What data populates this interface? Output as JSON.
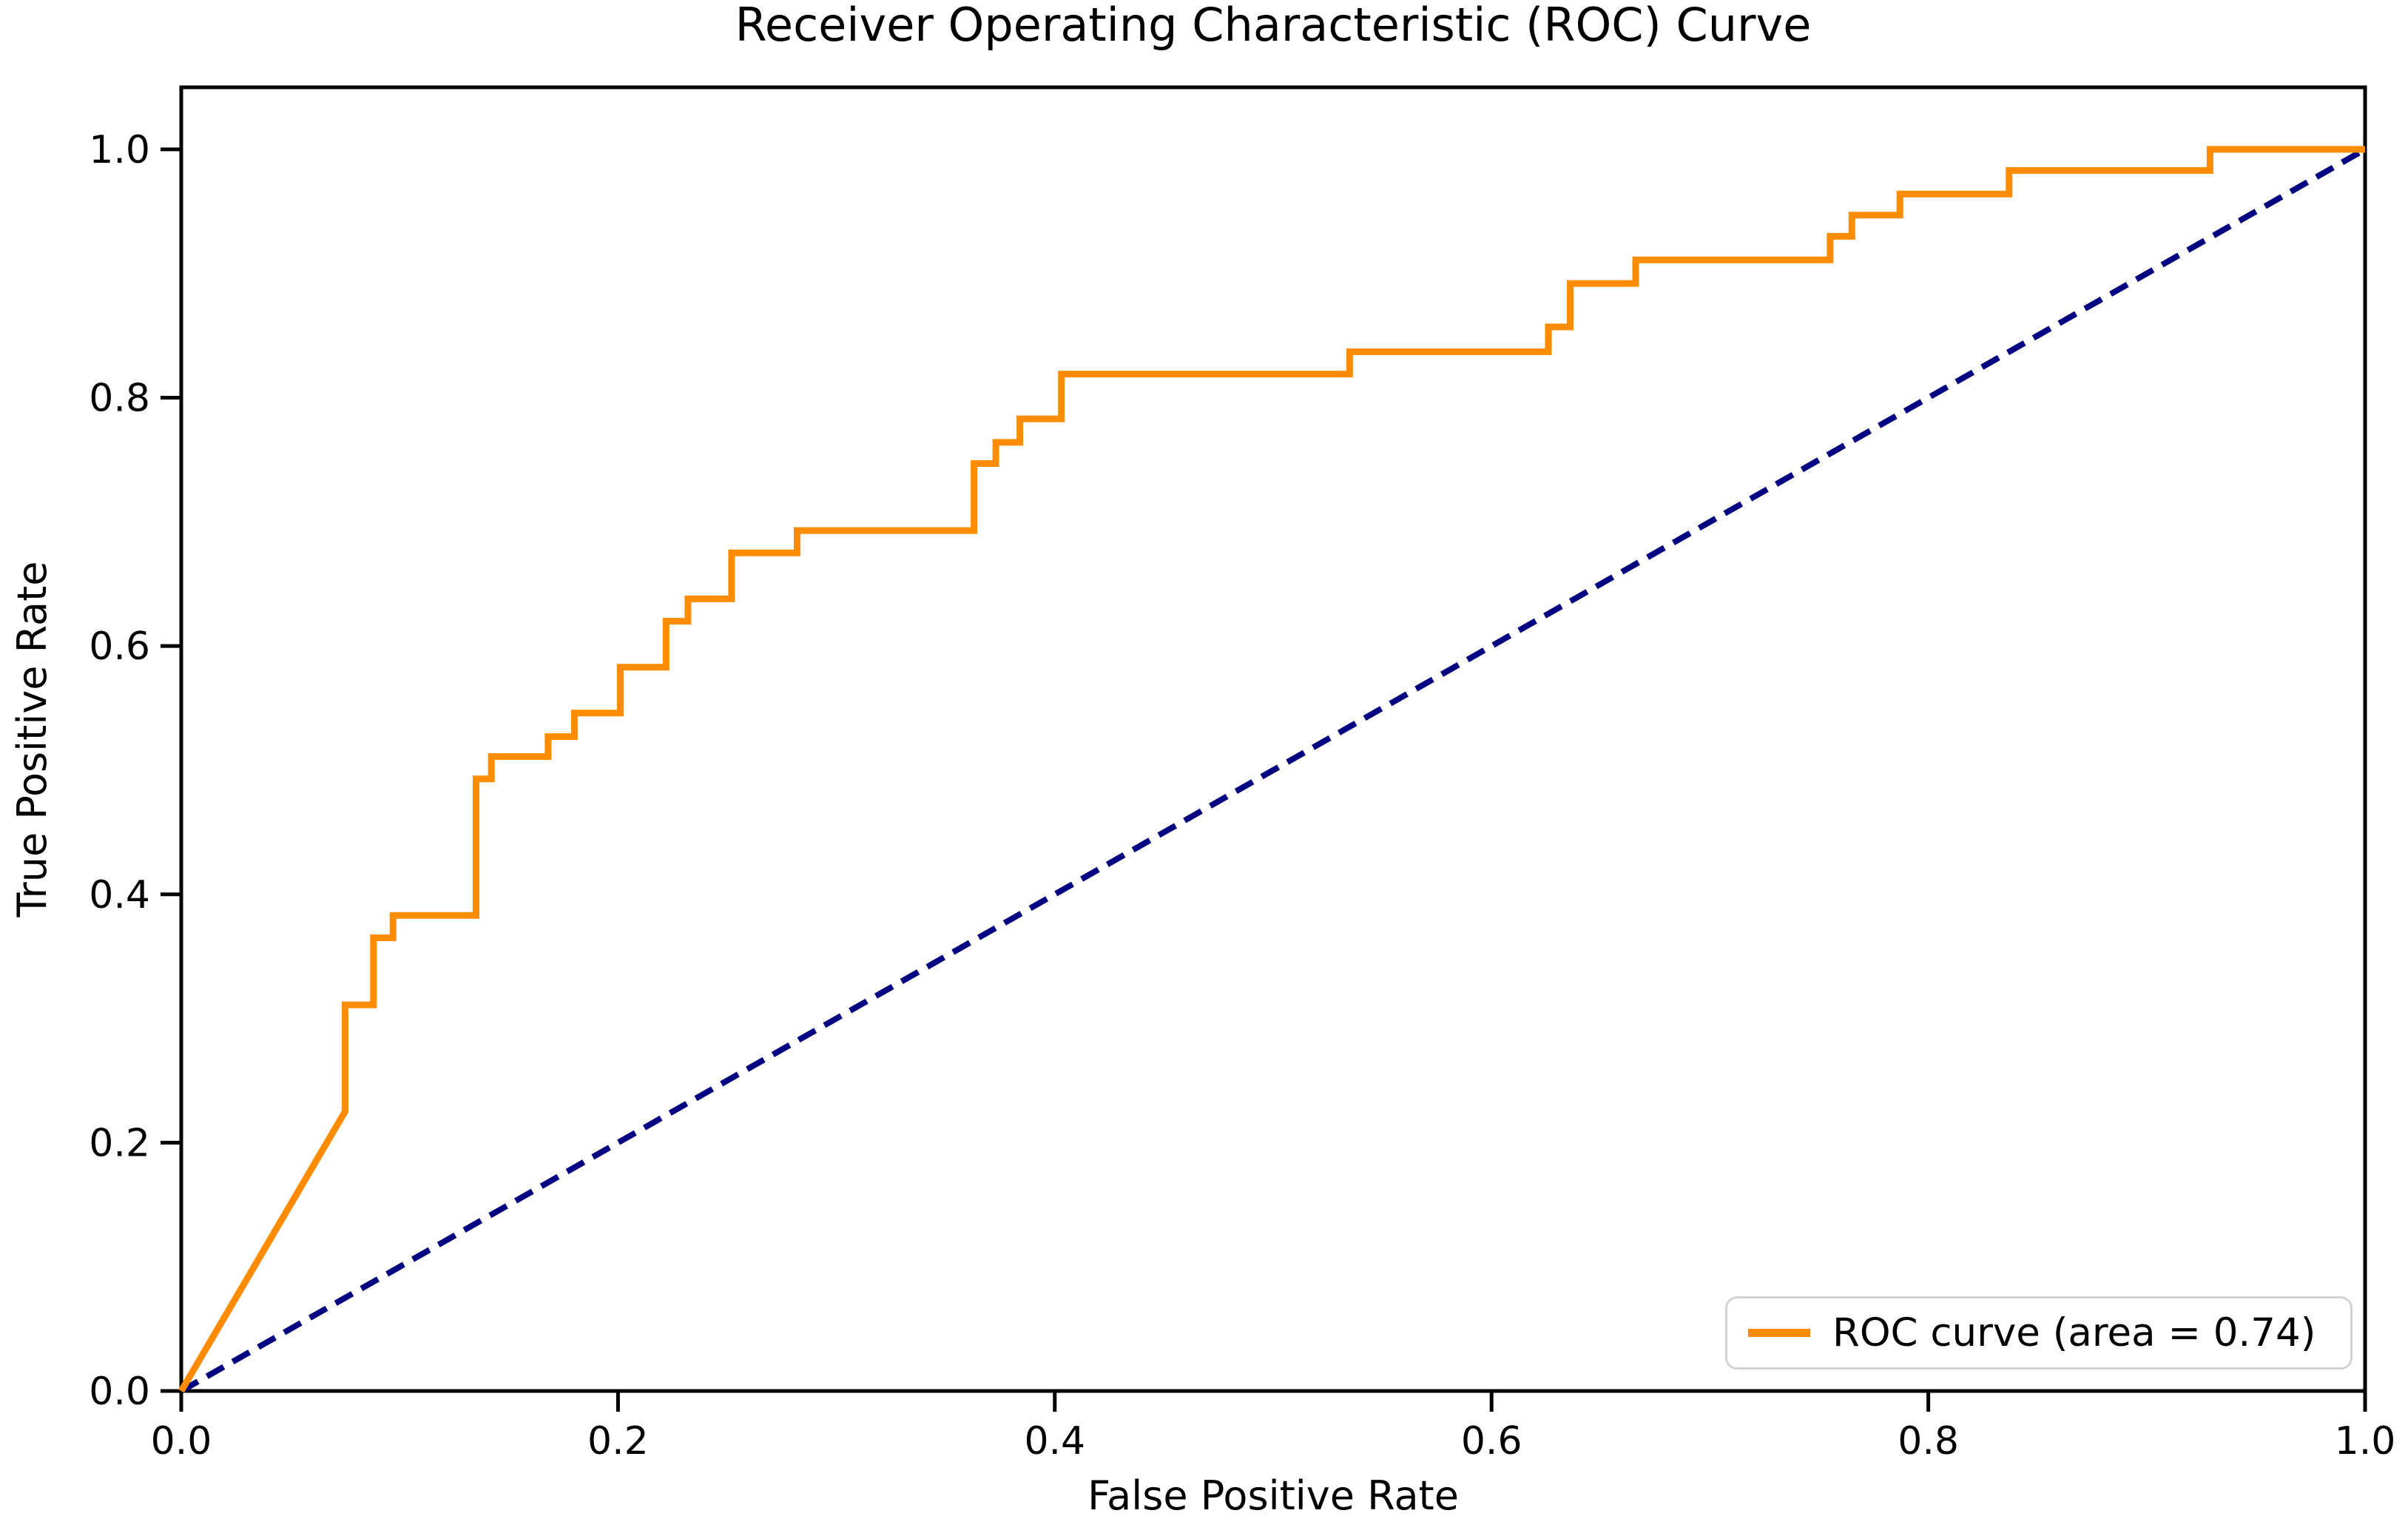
{
  "figure": {
    "title": "Receiver Operating Characteristic (ROC) Curve",
    "background_color": "#ffffff",
    "text_color": "#000000"
  },
  "chart_data": {
    "type": "line",
    "subtype": "roc-step-curve",
    "title": "Receiver Operating Characteristic (ROC) Curve",
    "xlabel": "False Positive Rate",
    "ylabel": "True Positive Rate",
    "xlim": [
      0.0,
      1.0
    ],
    "ylim": [
      0.0,
      1.05
    ],
    "grid": false,
    "x_tick_values": [
      0.0,
      0.2,
      0.4,
      0.6,
      0.8,
      1.0
    ],
    "x_tick_labels": [
      "0.0",
      "0.2",
      "0.4",
      "0.6",
      "0.8",
      "1.0"
    ],
    "y_tick_values": [
      0.0,
      0.2,
      0.4,
      0.6,
      0.8,
      1.0
    ],
    "y_tick_labels": [
      "0.0",
      "0.2",
      "0.4",
      "0.6",
      "0.8",
      "1.0"
    ],
    "auc": 0.74,
    "legend": {
      "position": "lower right",
      "entries": [
        {
          "label": "ROC curve (area = 0.74)",
          "color": "#ff8c00",
          "style": "solid"
        }
      ]
    },
    "series": [
      {
        "name": "ROC curve",
        "color": "#ff8c00",
        "linewidth": 9,
        "style": "solid",
        "points": [
          [
            0.0,
            0.0
          ],
          [
            0.075,
            0.225
          ],
          [
            0.075,
            0.311
          ],
          [
            0.088,
            0.311
          ],
          [
            0.088,
            0.365
          ],
          [
            0.097,
            0.365
          ],
          [
            0.097,
            0.383
          ],
          [
            0.135,
            0.383
          ],
          [
            0.135,
            0.493
          ],
          [
            0.142,
            0.493
          ],
          [
            0.142,
            0.511
          ],
          [
            0.168,
            0.511
          ],
          [
            0.168,
            0.527
          ],
          [
            0.18,
            0.527
          ],
          [
            0.18,
            0.546
          ],
          [
            0.201,
            0.546
          ],
          [
            0.201,
            0.583
          ],
          [
            0.222,
            0.583
          ],
          [
            0.222,
            0.62
          ],
          [
            0.232,
            0.62
          ],
          [
            0.232,
            0.638
          ],
          [
            0.252,
            0.638
          ],
          [
            0.252,
            0.675
          ],
          [
            0.282,
            0.675
          ],
          [
            0.282,
            0.693
          ],
          [
            0.363,
            0.693
          ],
          [
            0.363,
            0.747
          ],
          [
            0.373,
            0.747
          ],
          [
            0.373,
            0.764
          ],
          [
            0.384,
            0.764
          ],
          [
            0.384,
            0.783
          ],
          [
            0.403,
            0.783
          ],
          [
            0.403,
            0.819
          ],
          [
            0.535,
            0.819
          ],
          [
            0.535,
            0.837
          ],
          [
            0.626,
            0.837
          ],
          [
            0.626,
            0.857
          ],
          [
            0.636,
            0.857
          ],
          [
            0.636,
            0.892
          ],
          [
            0.666,
            0.892
          ],
          [
            0.666,
            0.911
          ],
          [
            0.755,
            0.911
          ],
          [
            0.755,
            0.93
          ],
          [
            0.765,
            0.93
          ],
          [
            0.765,
            0.947
          ],
          [
            0.787,
            0.947
          ],
          [
            0.787,
            0.964
          ],
          [
            0.837,
            0.964
          ],
          [
            0.837,
            0.983
          ],
          [
            0.929,
            0.983
          ],
          [
            0.929,
            1.0
          ],
          [
            1.0,
            1.0
          ]
        ]
      },
      {
        "name": "chance diagonal",
        "color": "#000080",
        "linewidth": 8,
        "style": "dashed",
        "points": [
          [
            0.0,
            0.0
          ],
          [
            1.0,
            1.0
          ]
        ]
      }
    ]
  }
}
